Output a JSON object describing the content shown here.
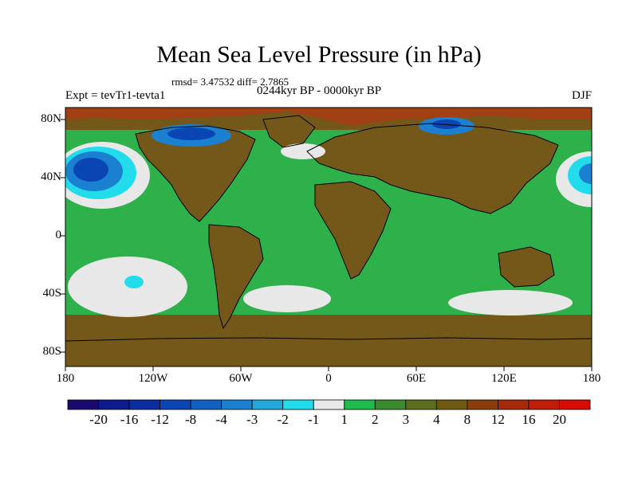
{
  "title": "Mean Sea Level Pressure (in hPa)",
  "subtitle_stats": "rmsd= 3.47532 diff= 2.7865",
  "subtitle_period": "0244kyr BP - 0000kyr BP",
  "left_label": "Expt = tevTr1-tevta1",
  "right_label": "DJF",
  "lat_labels": [
    "80N",
    "40N",
    "0",
    "40S",
    "80S"
  ],
  "lon_labels": [
    "180",
    "120W",
    "60W",
    "0",
    "60E",
    "120E",
    "180"
  ],
  "colorbar": {
    "labels": [
      "-20",
      "-16",
      "-12",
      "-8",
      "-4",
      "-3",
      "-2",
      "-1",
      "1",
      "2",
      "3",
      "4",
      "8",
      "12",
      "16",
      "20"
    ],
    "colors": [
      "#1a0a6e",
      "#0d1a8c",
      "#0a2ea0",
      "#0a45b4",
      "#1260c0",
      "#1a80cf",
      "#22a8dc",
      "#22dcec",
      "#e8e8e8",
      "#1fbc4c",
      "#3a8a2e",
      "#5a6e1e",
      "#6e5a12",
      "#8a3c0a",
      "#a62a0a",
      "#c01c08",
      "#d80c04"
    ]
  },
  "colors": {
    "ocean_base": "#2eb04a",
    "land": "#74581a",
    "land_light": "#7a6420",
    "high_red": "#a83c14",
    "low_white": "#e8e8e8",
    "low_cyan": "#22dcec",
    "low_blue": "#1a80cf",
    "low_deep": "#0a45b4"
  }
}
